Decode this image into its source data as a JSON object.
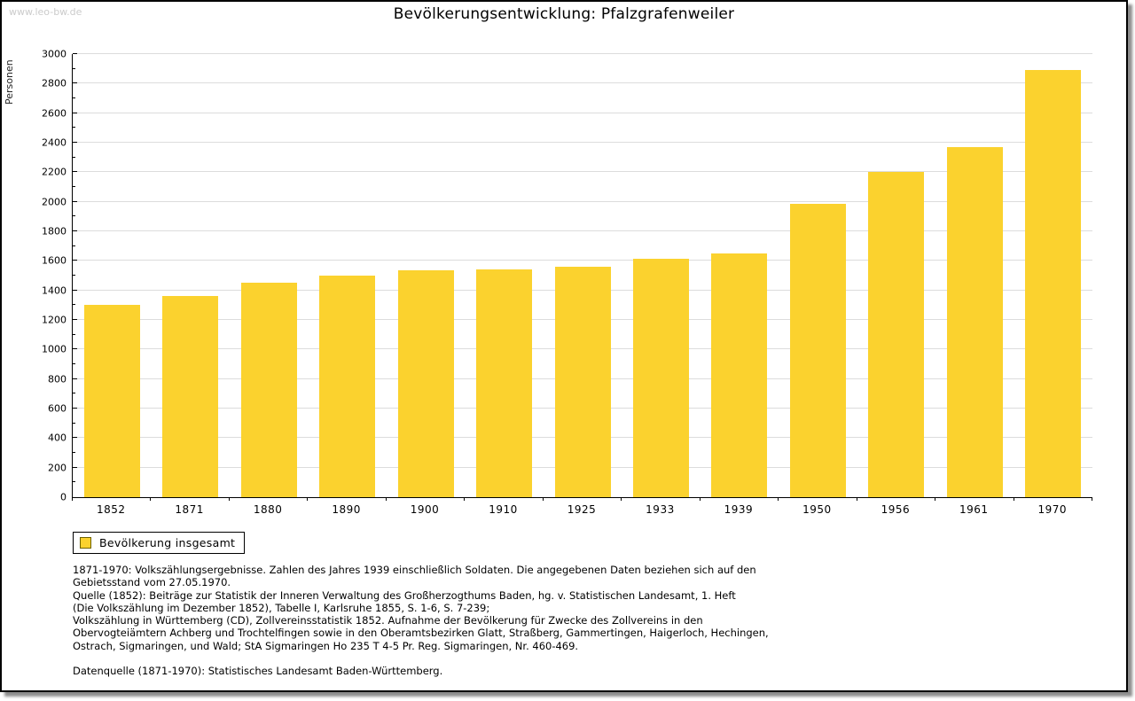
{
  "page": {
    "watermark": "www.leo-bw.de",
    "title": "Bevölkerungsentwicklung: Pfalzgrafenweiler"
  },
  "chart_data": {
    "type": "bar",
    "title": "Bevölkerungsentwicklung: Pfalzgrafenweiler",
    "xlabel": "",
    "ylabel": "Personen",
    "categories": [
      "1852",
      "1871",
      "1880",
      "1890",
      "1900",
      "1910",
      "1925",
      "1933",
      "1939",
      "1950",
      "1956",
      "1961",
      "1970"
    ],
    "series": [
      {
        "name": "Bevölkerung insgesamt",
        "values": [
          1300,
          1365,
          1455,
          1500,
          1535,
          1540,
          1560,
          1615,
          1650,
          1985,
          2205,
          2370,
          2890
        ]
      }
    ],
    "ylim": [
      0,
      3000
    ],
    "ytick_step": 200,
    "ytick_minor_step": 100,
    "grid": "horizontal",
    "gridline_color": "#dcdcdc",
    "bar_color": "#fbd22e",
    "legend_position": "bottom-left"
  },
  "legend": {
    "label": "Bevölkerung insgesamt",
    "swatch_color": "#fbd22e",
    "swatch_border_color": "#6e6200"
  },
  "footnotes": {
    "lines": [
      "1871-1970: Volkszählungsergebnisse. Zahlen des Jahres 1939 einschließlich Soldaten. Die angegebenen Daten beziehen sich auf den",
      "Gebietsstand vom 27.05.1970.",
      "Quelle (1852): Beiträge zur Statistik der Inneren Verwaltung des Großherzogthums Baden, hg. v. Statistischen Landesamt, 1. Heft",
      "(Die Volkszählung im Dezember 1852), Tabelle I, Karlsruhe 1855, S. 1-6, S. 7-239;",
      "Volkszählung in Württemberg (CD), Zollvereinsstatistik 1852. Aufnahme der Bevölkerung für Zwecke des Zollvereins in den",
      "Obervogteiämtern Achberg und Trochtelfingen sowie in den Oberamtsbezirken Glatt, Straßberg, Gammertingen, Haigerloch, Hechingen,",
      "Ostrach, Sigmaringen, und Wald; StA Sigmaringen Ho 235 T 4-5 Pr. Reg. Sigmaringen, Nr. 460-469."
    ],
    "datasource": "Datenquelle (1871-1970): Statistisches Landesamt Baden-Württemberg."
  }
}
